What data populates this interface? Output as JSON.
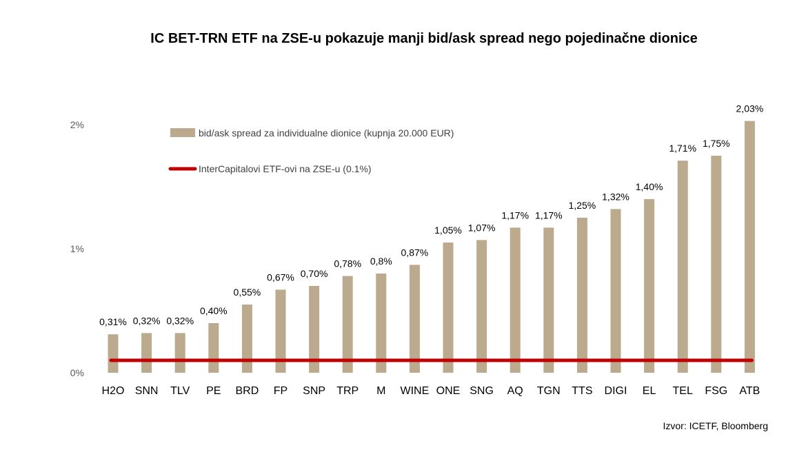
{
  "chart_data": {
    "type": "bar",
    "title": "IC BET-TRN ETF na ZSE-u pokazuje manji bid/ask spread nego pojedinačne dionice",
    "categories": [
      "H2O",
      "SNN",
      "TLV",
      "PE",
      "BRD",
      "FP",
      "SNP",
      "TRP",
      "M",
      "WINE",
      "ONE",
      "SNG",
      "AQ",
      "TGN",
      "TTS",
      "DIGI",
      "EL",
      "TEL",
      "FSG",
      "ATB"
    ],
    "series": [
      {
        "name": "bid/ask spread za individualne dionice (kupnja 20.000 EUR)",
        "type": "bar",
        "color": "#BCAA8E",
        "values": [
          0.31,
          0.32,
          0.32,
          0.4,
          0.55,
          0.67,
          0.7,
          0.78,
          0.8,
          0.87,
          1.05,
          1.07,
          1.17,
          1.17,
          1.25,
          1.32,
          1.4,
          1.71,
          1.75,
          2.03
        ],
        "data_labels": [
          "0,31%",
          "0,32%",
          "0,32%",
          "0,40%",
          "0,55%",
          "0,67%",
          "0,70%",
          "0,78%",
          "0,8%",
          "0,87%",
          "1,05%",
          "1,07%",
          "1,17%",
          "1,17%",
          "1,25%",
          "1,32%",
          "1,40%",
          "1,71%",
          "1,75%",
          "2,03%"
        ]
      },
      {
        "name": "InterCapitalovi ETF-ovi na ZSE-u (0.1%)",
        "type": "line",
        "color": "#C00000",
        "value": 0.1
      }
    ],
    "y_ticks": [
      {
        "value": 0,
        "label": "0%"
      },
      {
        "value": 1,
        "label": "1%"
      },
      {
        "value": 2,
        "label": "2%"
      }
    ],
    "ylim": [
      0,
      2.2
    ],
    "grid": false,
    "legend_position": "top-left",
    "source": "Izvor: ICETF, Bloomberg"
  }
}
